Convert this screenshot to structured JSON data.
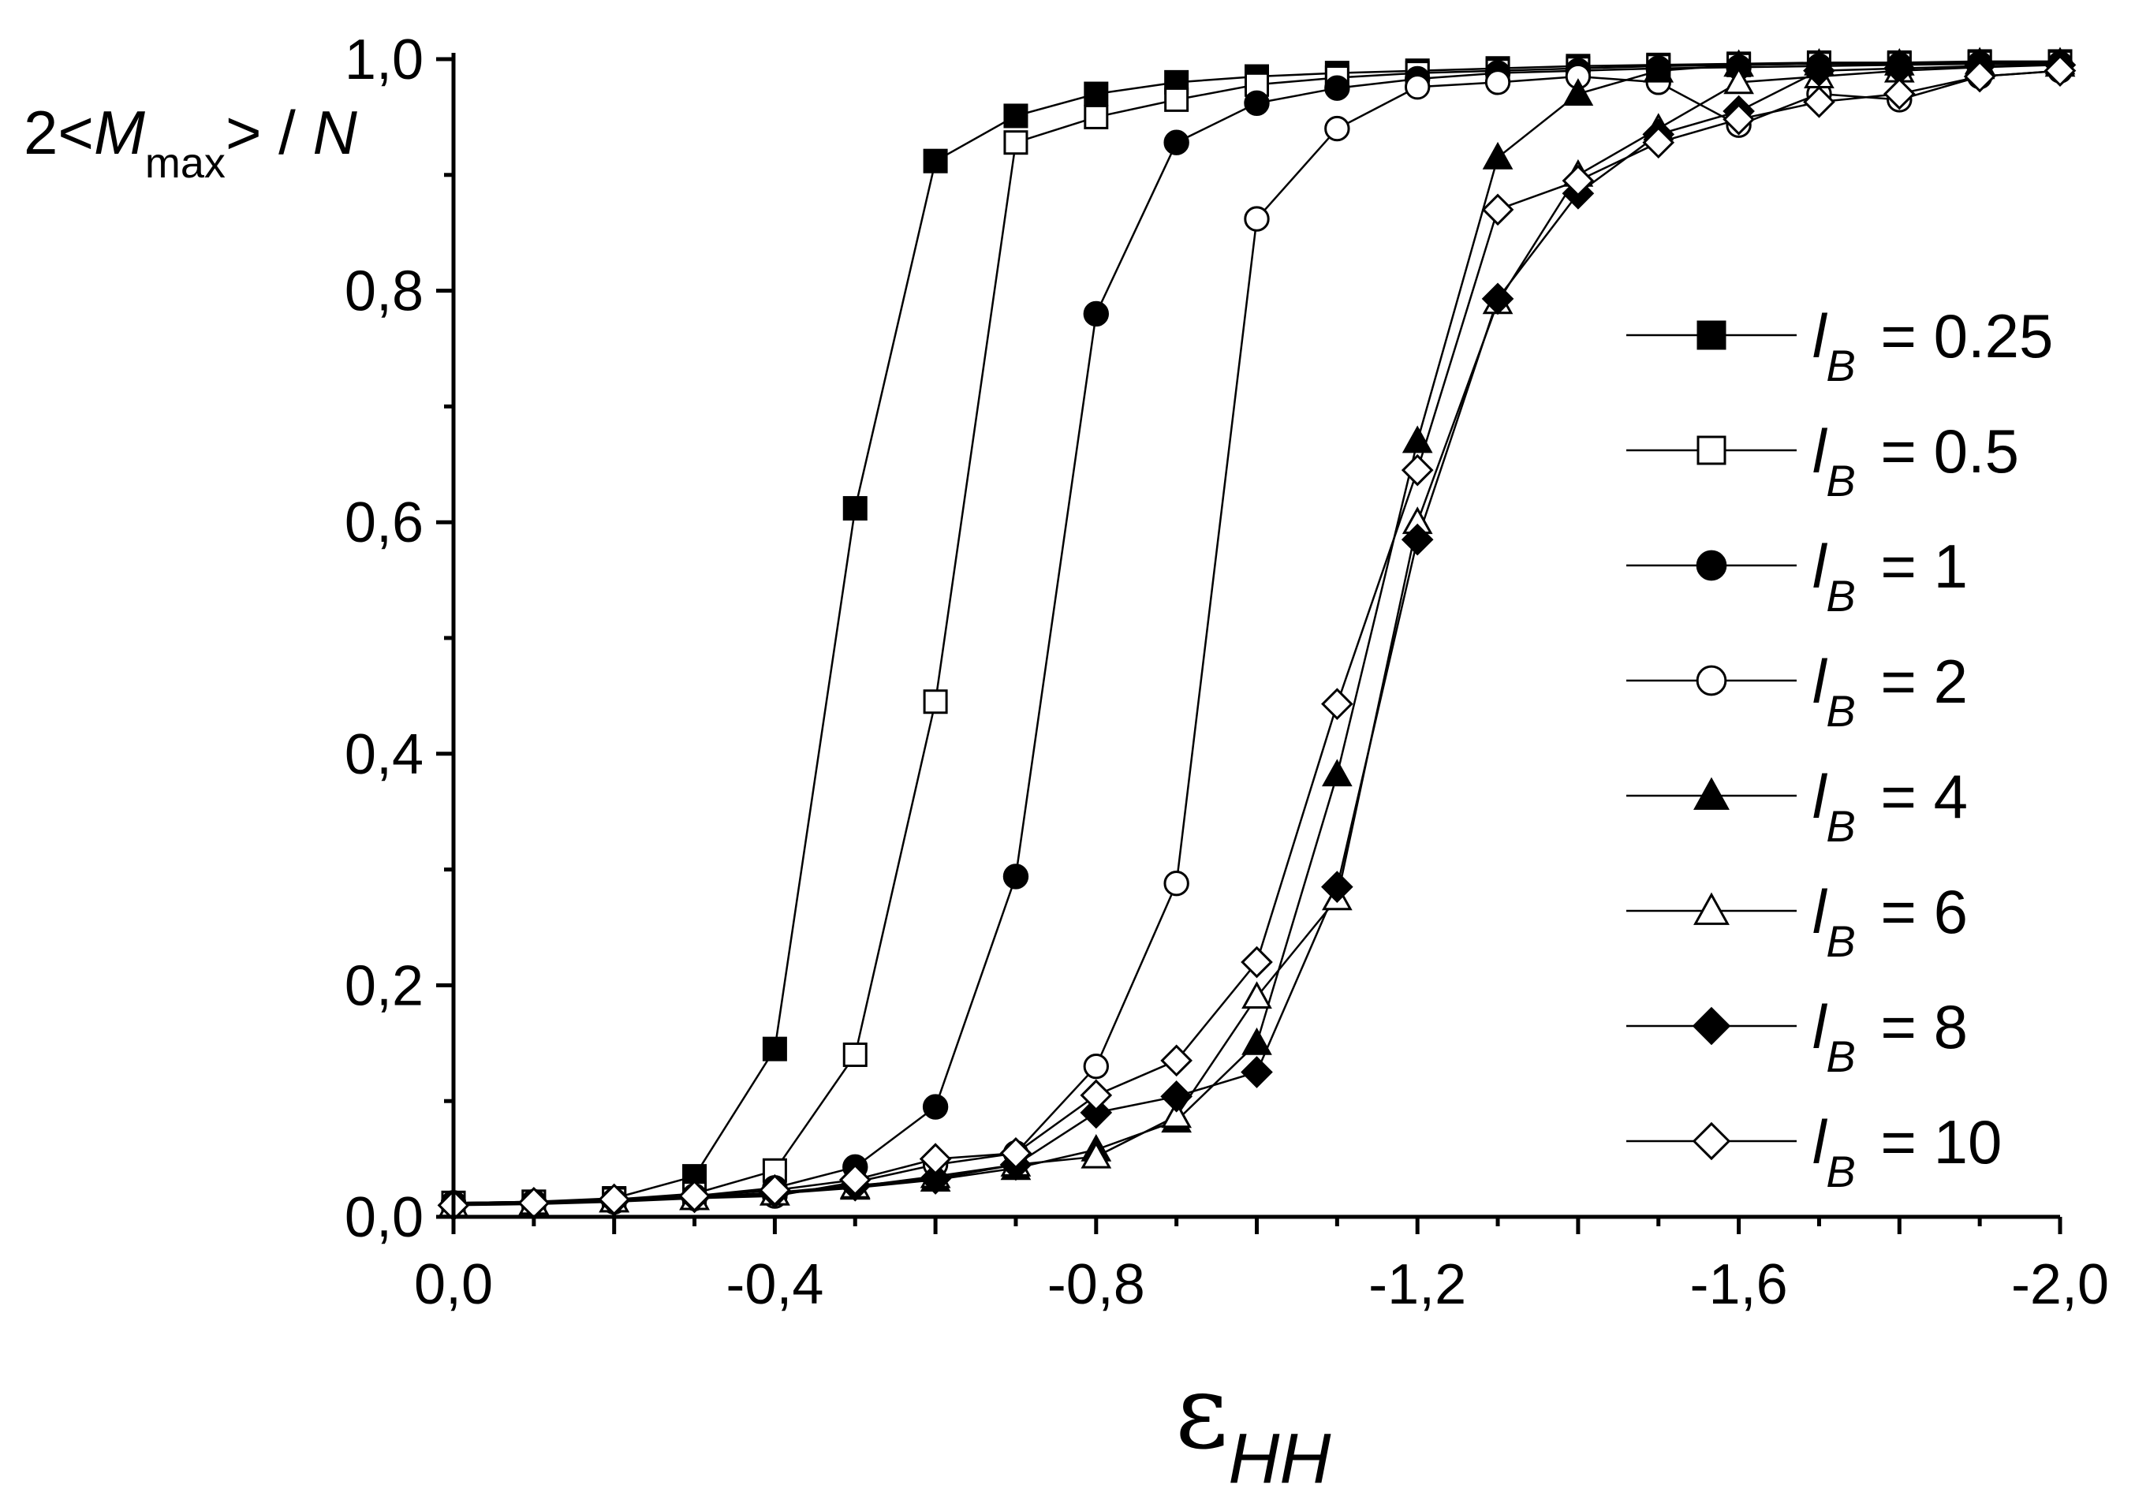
{
  "chart_data": {
    "type": "line",
    "title": "",
    "xlabel": "ε",
    "xlabel_sub": "HH",
    "ylabel_parts": {
      "prefix": "2<",
      "var": "M",
      "sub": "max",
      "suffix": "> / ",
      "denom": "N"
    },
    "xlim": [
      0.0,
      -2.0
    ],
    "ylim": [
      0.0,
      1.0
    ],
    "x_ticks": [
      0.0,
      -0.4,
      -0.8,
      -1.2,
      -1.6,
      -2.0
    ],
    "x_tick_labels": [
      "0,0",
      "-0,4",
      "-0,8",
      "-1,2",
      "-1,6",
      "-2,0"
    ],
    "y_ticks": [
      0.0,
      0.2,
      0.4,
      0.6,
      0.8,
      1.0
    ],
    "y_tick_labels": [
      "0,0",
      "0,2",
      "0,4",
      "0,6",
      "0,8",
      "1,0"
    ],
    "legend_position": "right",
    "legend_var": "l",
    "legend_sub": "B",
    "x": [
      0.0,
      -0.1,
      -0.2,
      -0.3,
      -0.4,
      -0.5,
      -0.6,
      -0.7,
      -0.8,
      -0.9,
      -1.0,
      -1.1,
      -1.2,
      -1.3,
      -1.4,
      -1.5,
      -1.6,
      -1.7,
      -1.8,
      -1.9,
      -2.0
    ],
    "series": [
      {
        "name": "lB = 0.25",
        "label_value": "= 0.25",
        "marker": "square",
        "filled": true,
        "values": [
          0.012,
          0.013,
          0.016,
          0.035,
          0.145,
          0.612,
          0.912,
          0.951,
          0.97,
          0.98,
          0.985,
          0.988,
          0.99,
          0.992,
          0.994,
          0.995,
          0.996,
          0.997,
          0.997,
          0.998,
          0.998
        ]
      },
      {
        "name": "lB = 0.5",
        "label_value": "= 0.5",
        "marker": "square",
        "filled": false,
        "values": [
          0.012,
          0.013,
          0.015,
          0.02,
          0.04,
          0.14,
          0.445,
          0.928,
          0.95,
          0.965,
          0.978,
          0.984,
          0.988,
          0.99,
          0.992,
          0.994,
          0.995,
          0.996,
          0.996,
          0.997,
          0.997
        ]
      },
      {
        "name": "lB = 1",
        "label_value": "= 1",
        "marker": "circle",
        "filled": true,
        "values": [
          0.012,
          0.013,
          0.014,
          0.018,
          0.025,
          0.043,
          0.095,
          0.294,
          0.78,
          0.928,
          0.962,
          0.975,
          0.983,
          0.988,
          0.99,
          0.992,
          0.993,
          0.994,
          0.995,
          0.996,
          0.996
        ]
      },
      {
        "name": "lB = 2",
        "label_value": "= 2",
        "marker": "circle",
        "filled": false,
        "values": [
          0.01,
          0.011,
          0.013,
          0.016,
          0.018,
          0.03,
          0.045,
          0.055,
          0.13,
          0.288,
          0.862,
          0.94,
          0.976,
          0.98,
          0.985,
          0.98,
          0.943,
          0.97,
          0.965,
          0.985,
          0.99
        ]
      },
      {
        "name": "lB = 4",
        "label_value": "= 4",
        "marker": "triangle",
        "filled": true,
        "values": [
          0.01,
          0.012,
          0.014,
          0.016,
          0.02,
          0.025,
          0.032,
          0.042,
          0.058,
          0.083,
          0.15,
          0.382,
          0.67,
          0.915,
          0.97,
          0.99,
          0.995,
          0.996,
          0.996,
          0.997,
          0.997
        ]
      },
      {
        "name": "lB = 6",
        "label_value": "= 6",
        "marker": "triangle",
        "filled": false,
        "values": [
          0.01,
          0.012,
          0.014,
          0.016,
          0.02,
          0.026,
          0.035,
          0.045,
          0.052,
          0.087,
          0.19,
          0.275,
          0.6,
          0.79,
          0.9,
          0.94,
          0.98,
          0.985,
          0.99,
          0.993,
          0.995
        ]
      },
      {
        "name": "lB = 8",
        "label_value": "= 8",
        "marker": "diamond",
        "filled": true,
        "values": [
          0.01,
          0.012,
          0.014,
          0.017,
          0.021,
          0.027,
          0.033,
          0.045,
          0.09,
          0.104,
          0.125,
          0.285,
          0.585,
          0.793,
          0.884,
          0.935,
          0.955,
          0.99,
          0.992,
          0.994,
          0.995
        ]
      },
      {
        "name": "lB = 10",
        "label_value": "= 10",
        "marker": "diamond",
        "filled": false,
        "values": [
          0.01,
          0.012,
          0.015,
          0.018,
          0.023,
          0.032,
          0.05,
          0.055,
          0.105,
          0.135,
          0.22,
          0.443,
          0.645,
          0.87,
          0.895,
          0.928,
          0.948,
          0.963,
          0.97,
          0.985,
          0.99
        ]
      }
    ]
  }
}
